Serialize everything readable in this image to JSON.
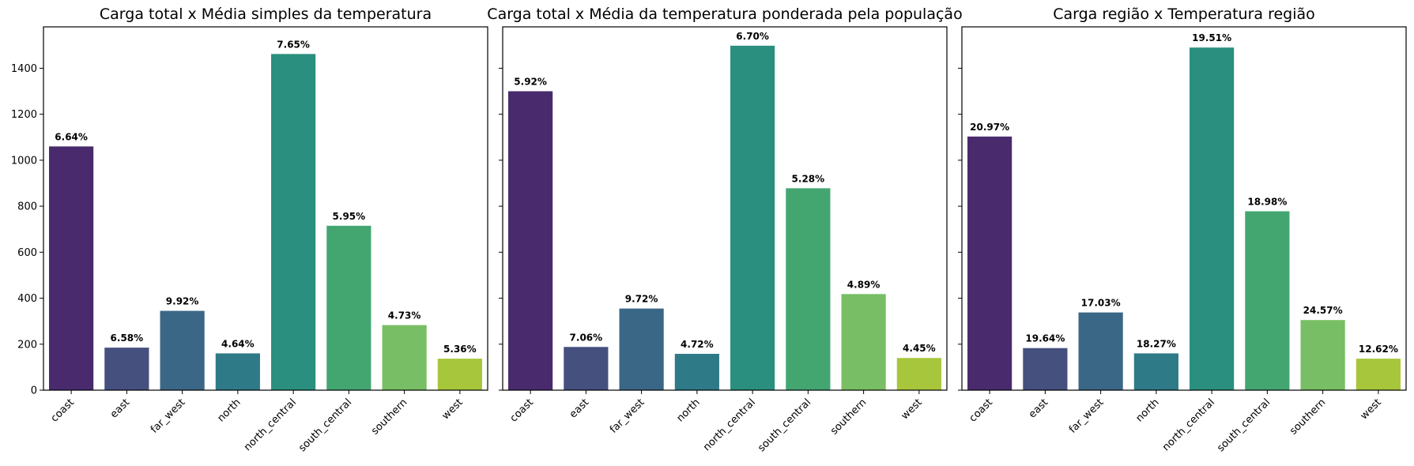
{
  "chart_data": [
    {
      "type": "bar",
      "title": "Carga total x Média simples da temperatura",
      "categories": [
        "coast",
        "east",
        "far_west",
        "north",
        "north_central",
        "south_central",
        "southern",
        "west"
      ],
      "values": [
        1060,
        185,
        345,
        160,
        1462,
        715,
        283,
        137
      ],
      "data_labels": [
        "6.64%",
        "6.58%",
        "9.92%",
        "4.64%",
        "7.65%",
        "5.95%",
        "4.73%",
        "5.36%"
      ],
      "colors": [
        "#482a6d",
        "#45507f",
        "#3b6786",
        "#2f7a87",
        "#2a8f7e",
        "#43a671",
        "#78be64",
        "#a8c63c"
      ],
      "ylim": [
        0,
        1580
      ],
      "yticks": [
        0,
        200,
        400,
        600,
        800,
        1000,
        1200,
        1400
      ],
      "xlabel": "",
      "ylabel": ""
    },
    {
      "type": "bar",
      "title": "Carga total x Média da temperatura ponderada pela população",
      "categories": [
        "coast",
        "east",
        "far_west",
        "north",
        "north_central",
        "south_central",
        "southern",
        "west"
      ],
      "values": [
        1300,
        188,
        355,
        158,
        1498,
        878,
        418,
        140
      ],
      "data_labels": [
        "5.92%",
        "7.06%",
        "9.72%",
        "4.72%",
        "6.70%",
        "5.28%",
        "4.89%",
        "4.45%"
      ],
      "colors": [
        "#482a6d",
        "#45507f",
        "#3b6786",
        "#2f7a87",
        "#2a8f7e",
        "#43a671",
        "#78be64",
        "#a8c63c"
      ],
      "ylim": [
        0,
        1580
      ],
      "yticks": [
        0,
        200,
        400,
        600,
        800,
        1000,
        1200,
        1400
      ],
      "xlabel": "",
      "ylabel": ""
    },
    {
      "type": "bar",
      "title": "Carga região x Temperatura região",
      "categories": [
        "coast",
        "east",
        "far_west",
        "north",
        "north_central",
        "south_central",
        "southern",
        "west"
      ],
      "values": [
        1103,
        183,
        338,
        160,
        1490,
        778,
        305,
        137
      ],
      "data_labels": [
        "20.97%",
        "19.64%",
        "17.03%",
        "18.27%",
        "19.51%",
        "18.98%",
        "24.57%",
        "12.62%"
      ],
      "colors": [
        "#482a6d",
        "#45507f",
        "#3b6786",
        "#2f7a87",
        "#2a8f7e",
        "#43a671",
        "#78be64",
        "#a8c63c"
      ],
      "ylim": [
        0,
        1580
      ],
      "yticks": [
        0,
        200,
        400,
        600,
        800,
        1000,
        1200,
        1400
      ],
      "xlabel": "",
      "ylabel": ""
    }
  ]
}
